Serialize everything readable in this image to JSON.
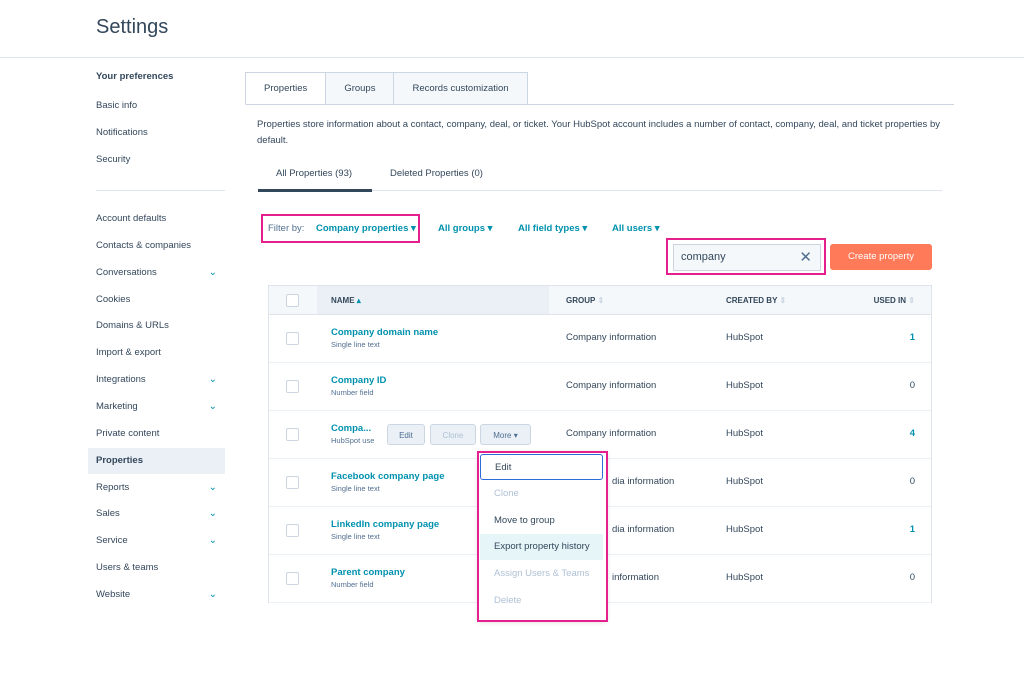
{
  "header": {
    "title": "Settings"
  },
  "sidebar": {
    "section_title": "Your preferences",
    "preferences": [
      "Basic info",
      "Notifications",
      "Security"
    ],
    "items": [
      {
        "label": "Account defaults",
        "expandable": false
      },
      {
        "label": "Contacts & companies",
        "expandable": false
      },
      {
        "label": "Conversations",
        "expandable": true
      },
      {
        "label": "Cookies",
        "expandable": false
      },
      {
        "label": "Domains & URLs",
        "expandable": false
      },
      {
        "label": "Import & export",
        "expandable": false
      },
      {
        "label": "Integrations",
        "expandable": true
      },
      {
        "label": "Marketing",
        "expandable": true
      },
      {
        "label": "Private content",
        "expandable": false
      },
      {
        "label": "Properties",
        "expandable": false,
        "active": true
      },
      {
        "label": "Reports",
        "expandable": true
      },
      {
        "label": "Sales",
        "expandable": true
      },
      {
        "label": "Service",
        "expandable": true
      },
      {
        "label": "Users & teams",
        "expandable": false
      },
      {
        "label": "Website",
        "expandable": true
      }
    ]
  },
  "tabs": [
    "Properties",
    "Groups",
    "Records customization"
  ],
  "description": "Properties store information about a contact, company, deal, or ticket. Your HubSpot account includes a number of contact, company, deal, and ticket properties by default.",
  "subtabs": [
    "All Properties (93)",
    "Deleted Properties (0)"
  ],
  "filters": {
    "label": "Filter by:",
    "object": "Company properties",
    "groups": "All groups",
    "field_types": "All field types",
    "users": "All users"
  },
  "search": {
    "value": "company"
  },
  "create_button": "Create property",
  "table": {
    "columns": [
      "NAME",
      "GROUP",
      "CREATED BY",
      "USED IN"
    ],
    "rows": [
      {
        "name": "Company domain name",
        "type": "Single line text",
        "group": "Company information",
        "created_by": "HubSpot",
        "used_in": "1"
      },
      {
        "name": "Company ID",
        "type": "Number field",
        "group": "Company information",
        "created_by": "HubSpot",
        "used_in": "0"
      },
      {
        "name": "Compa...",
        "type": "HubSpot use",
        "group": "Company information",
        "created_by": "HubSpot",
        "used_in": "4"
      },
      {
        "name": "Facebook company page",
        "type": "Single line text",
        "group": "dia information",
        "created_by": "HubSpot",
        "used_in": "0"
      },
      {
        "name": "LinkedIn company page",
        "type": "Single line text",
        "group": "dia information",
        "created_by": "HubSpot",
        "used_in": "1"
      },
      {
        "name": "Parent company",
        "type": "Number field",
        "group": "information",
        "created_by": "HubSpot",
        "used_in": "0"
      }
    ],
    "row_actions": {
      "edit": "Edit",
      "clone": "Clone",
      "more": "More"
    }
  },
  "more_menu": [
    {
      "label": "Edit",
      "disabled": false
    },
    {
      "label": "Clone",
      "disabled": true
    },
    {
      "label": "Move to group",
      "disabled": false
    },
    {
      "label": "Export property history",
      "disabled": false,
      "hovered": true
    },
    {
      "label": "Assign Users & Teams",
      "disabled": true
    },
    {
      "label": "Delete",
      "disabled": true
    }
  ],
  "colors": {
    "accent": "#0091ae",
    "primary_button": "#ff7a59",
    "highlight_annotation": "#e5208e",
    "text": "#33475b"
  }
}
